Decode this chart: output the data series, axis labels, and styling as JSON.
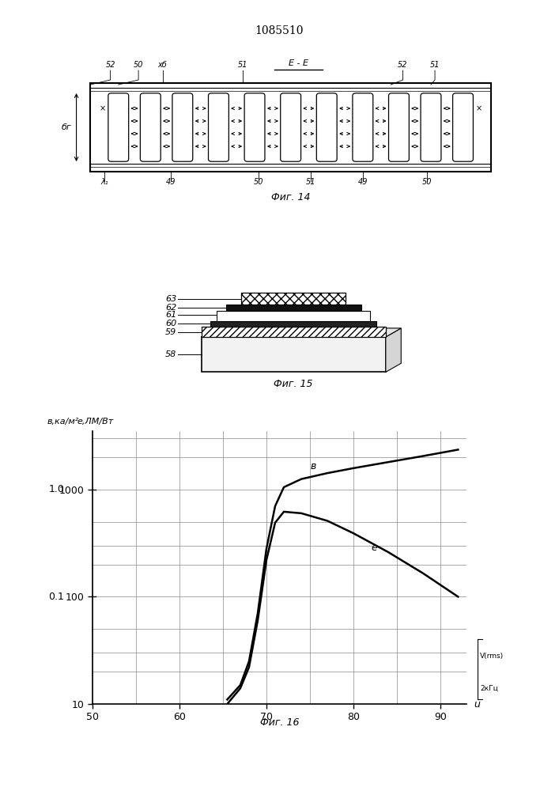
{
  "title": "1085510",
  "fig14_label": "Фиг. 14",
  "fig15_label": "Фиг. 15",
  "fig16_label": "Фиг. 16",
  "bg_color": "#ffffff",
  "curve_b_x": [
    65.5,
    67,
    68,
    69,
    70,
    71,
    72,
    74,
    77,
    80,
    84,
    88,
    92
  ],
  "curve_b_y": [
    11,
    15,
    25,
    70,
    280,
    700,
    1050,
    1250,
    1420,
    1580,
    1800,
    2050,
    2350
  ],
  "curve_e_x": [
    65.5,
    67,
    68,
    69,
    70,
    71,
    72,
    74,
    77,
    80,
    84,
    88,
    92
  ],
  "curve_e_y": [
    10,
    14,
    22,
    60,
    220,
    490,
    620,
    600,
    510,
    390,
    260,
    165,
    100
  ]
}
